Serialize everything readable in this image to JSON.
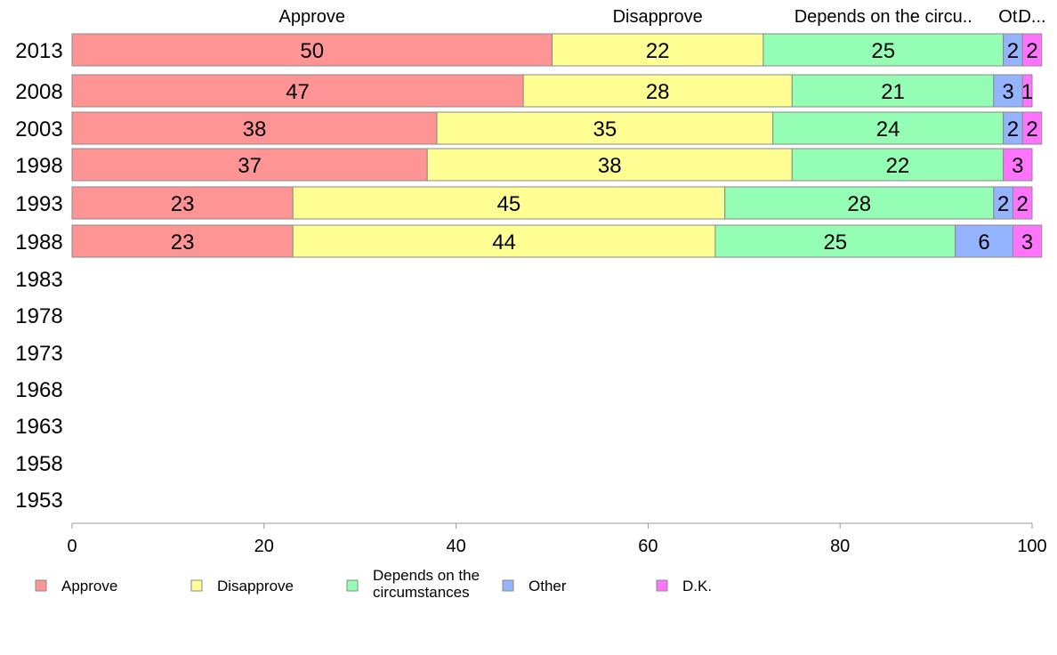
{
  "chart_data": {
    "type": "bar",
    "orientation": "horizontal",
    "stacked": true,
    "categories": [
      "2013",
      "2008",
      "2003",
      "1998",
      "1993",
      "1988",
      "1983",
      "1978",
      "1973",
      "1968",
      "1963",
      "1958",
      "1953"
    ],
    "series": [
      {
        "name": "Approve",
        "color": "#ff9494",
        "values": [
          50,
          47,
          38,
          37,
          23,
          23,
          null,
          null,
          null,
          null,
          null,
          null,
          null
        ]
      },
      {
        "name": "Disapprove",
        "color": "#ffff94",
        "values": [
          22,
          28,
          35,
          38,
          45,
          44,
          null,
          null,
          null,
          null,
          null,
          null,
          null
        ]
      },
      {
        "name": "Depends on the circumstances",
        "color": "#94ffb4",
        "values": [
          25,
          21,
          24,
          22,
          28,
          25,
          null,
          null,
          null,
          null,
          null,
          null,
          null
        ]
      },
      {
        "name": "Other",
        "color": "#94b4ff",
        "values": [
          2,
          3,
          2,
          0,
          2,
          6,
          null,
          null,
          null,
          null,
          null,
          null,
          null
        ]
      },
      {
        "name": "D.K.",
        "color": "#ff74ff",
        "values": [
          2,
          1,
          2,
          3,
          2,
          3,
          null,
          null,
          null,
          null,
          null,
          null,
          null
        ]
      }
    ],
    "top_labels": [
      "Approve",
      "Disapprove",
      "Depends on the circu..",
      "Ot..",
      "D..."
    ],
    "legend_labels": [
      [
        "Approve"
      ],
      [
        "Disapprove"
      ],
      [
        "Depends on the",
        "circumstances"
      ],
      [
        "Other"
      ],
      [
        "D.K."
      ]
    ],
    "xlim": [
      0,
      100
    ],
    "xticks": [
      0,
      20,
      40,
      60,
      80,
      100
    ],
    "grid": false,
    "legend_position": "bottom"
  }
}
